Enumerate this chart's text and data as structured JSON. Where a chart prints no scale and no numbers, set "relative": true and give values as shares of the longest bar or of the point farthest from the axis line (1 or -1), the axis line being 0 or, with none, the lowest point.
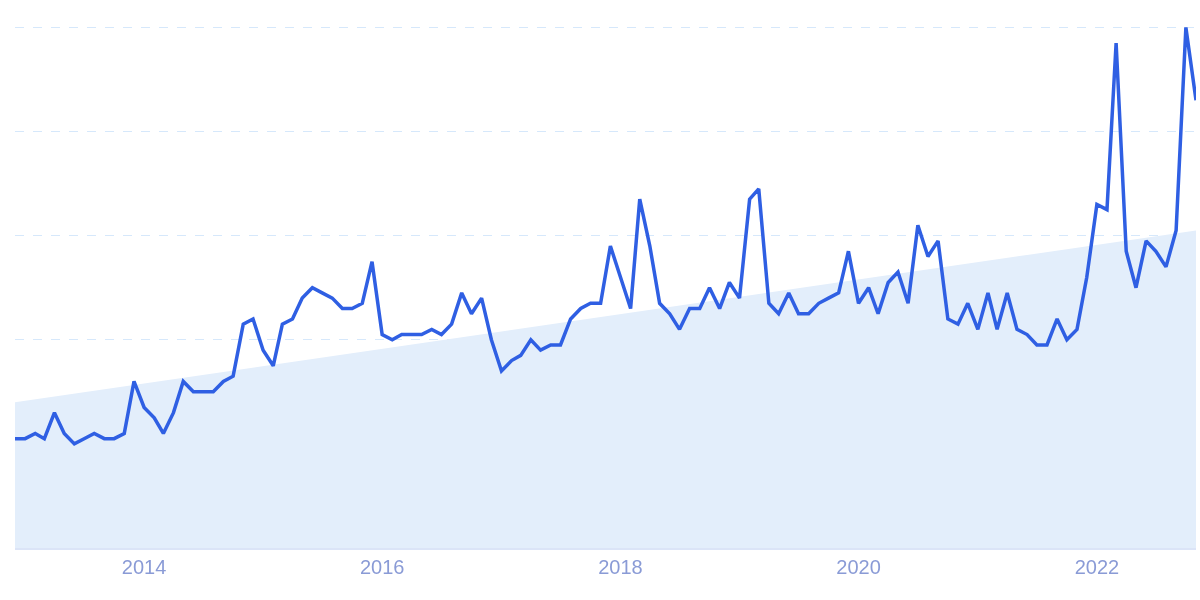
{
  "chart_data": {
    "type": "line",
    "relative": true,
    "grid": "y",
    "line_style": "solid",
    "marker": "none",
    "x": [
      "2012-12",
      "2013-01",
      "2013-02",
      "2013-03",
      "2013-04",
      "2013-05",
      "2013-06",
      "2013-07",
      "2013-08",
      "2013-09",
      "2013-10",
      "2013-11",
      "2013-12",
      "2014-01",
      "2014-02",
      "2014-03",
      "2014-04",
      "2014-05",
      "2014-06",
      "2014-07",
      "2014-08",
      "2014-09",
      "2014-10",
      "2014-11",
      "2014-12",
      "2015-01",
      "2015-02",
      "2015-03",
      "2015-04",
      "2015-05",
      "2015-06",
      "2015-07",
      "2015-08",
      "2015-09",
      "2015-10",
      "2015-11",
      "2015-12",
      "2016-01",
      "2016-02",
      "2016-03",
      "2016-04",
      "2016-05",
      "2016-06",
      "2016-07",
      "2016-08",
      "2016-09",
      "2016-10",
      "2016-11",
      "2016-12",
      "2017-01",
      "2017-02",
      "2017-03",
      "2017-04",
      "2017-05",
      "2017-06",
      "2017-07",
      "2017-08",
      "2017-09",
      "2017-10",
      "2017-11",
      "2017-12",
      "2018-01",
      "2018-02",
      "2018-03",
      "2018-04",
      "2018-05",
      "2018-06",
      "2018-07",
      "2018-08",
      "2018-09",
      "2018-10",
      "2018-11",
      "2018-12",
      "2019-01",
      "2019-02",
      "2019-03",
      "2019-04",
      "2019-05",
      "2019-06",
      "2019-07",
      "2019-08",
      "2019-09",
      "2019-10",
      "2019-11",
      "2019-12",
      "2020-01",
      "2020-02",
      "2020-03",
      "2020-04",
      "2020-05",
      "2020-06",
      "2020-07",
      "2020-08",
      "2020-09",
      "2020-10",
      "2020-11",
      "2020-12",
      "2021-01",
      "2021-02",
      "2021-03",
      "2021-04",
      "2021-05",
      "2021-06",
      "2021-07",
      "2021-08",
      "2021-09",
      "2021-10",
      "2021-11",
      "2021-12",
      "2022-01",
      "2022-02",
      "2022-03",
      "2022-04",
      "2022-05",
      "2022-06",
      "2022-07",
      "2022-08",
      "2022-09",
      "2022-10",
      "2022-11"
    ],
    "xlim": [
      "2012-12",
      "2022-11"
    ],
    "xticks": [
      "2014",
      "2016",
      "2018",
      "2020",
      "2022"
    ],
    "series": [
      {
        "type": "area",
        "color": "#e3eefb",
        "x": [
          "2012-12",
          "2022-11"
        ],
        "values": [
          0.28,
          0.61
        ]
      },
      {
        "color": "#2f5fe3",
        "values": [
          0.21,
          0.21,
          0.22,
          0.21,
          0.26,
          0.22,
          0.2,
          0.21,
          0.22,
          0.21,
          0.21,
          0.22,
          0.32,
          0.27,
          0.25,
          0.22,
          0.26,
          0.32,
          0.3,
          0.3,
          0.3,
          0.32,
          0.33,
          0.43,
          0.44,
          0.38,
          0.35,
          0.43,
          0.44,
          0.48,
          0.5,
          0.49,
          0.48,
          0.46,
          0.46,
          0.47,
          0.55,
          0.41,
          0.4,
          0.41,
          0.41,
          0.41,
          0.42,
          0.41,
          0.43,
          0.49,
          0.45,
          0.48,
          0.4,
          0.34,
          0.36,
          0.37,
          0.4,
          0.38,
          0.39,
          0.39,
          0.44,
          0.46,
          0.47,
          0.47,
          0.58,
          0.52,
          0.46,
          0.67,
          0.58,
          0.47,
          0.45,
          0.42,
          0.46,
          0.46,
          0.5,
          0.46,
          0.51,
          0.48,
          0.67,
          0.69,
          0.47,
          0.45,
          0.49,
          0.45,
          0.45,
          0.47,
          0.48,
          0.49,
          0.57,
          0.47,
          0.5,
          0.45,
          0.51,
          0.53,
          0.47,
          0.62,
          0.56,
          0.59,
          0.44,
          0.43,
          0.47,
          0.42,
          0.49,
          0.42,
          0.49,
          0.42,
          0.41,
          0.39,
          0.39,
          0.44,
          0.4,
          0.42,
          0.52,
          0.66,
          0.65,
          0.97,
          0.57,
          0.5,
          0.59,
          0.57,
          0.54,
          0.61,
          1,
          0.86
        ]
      }
    ]
  }
}
